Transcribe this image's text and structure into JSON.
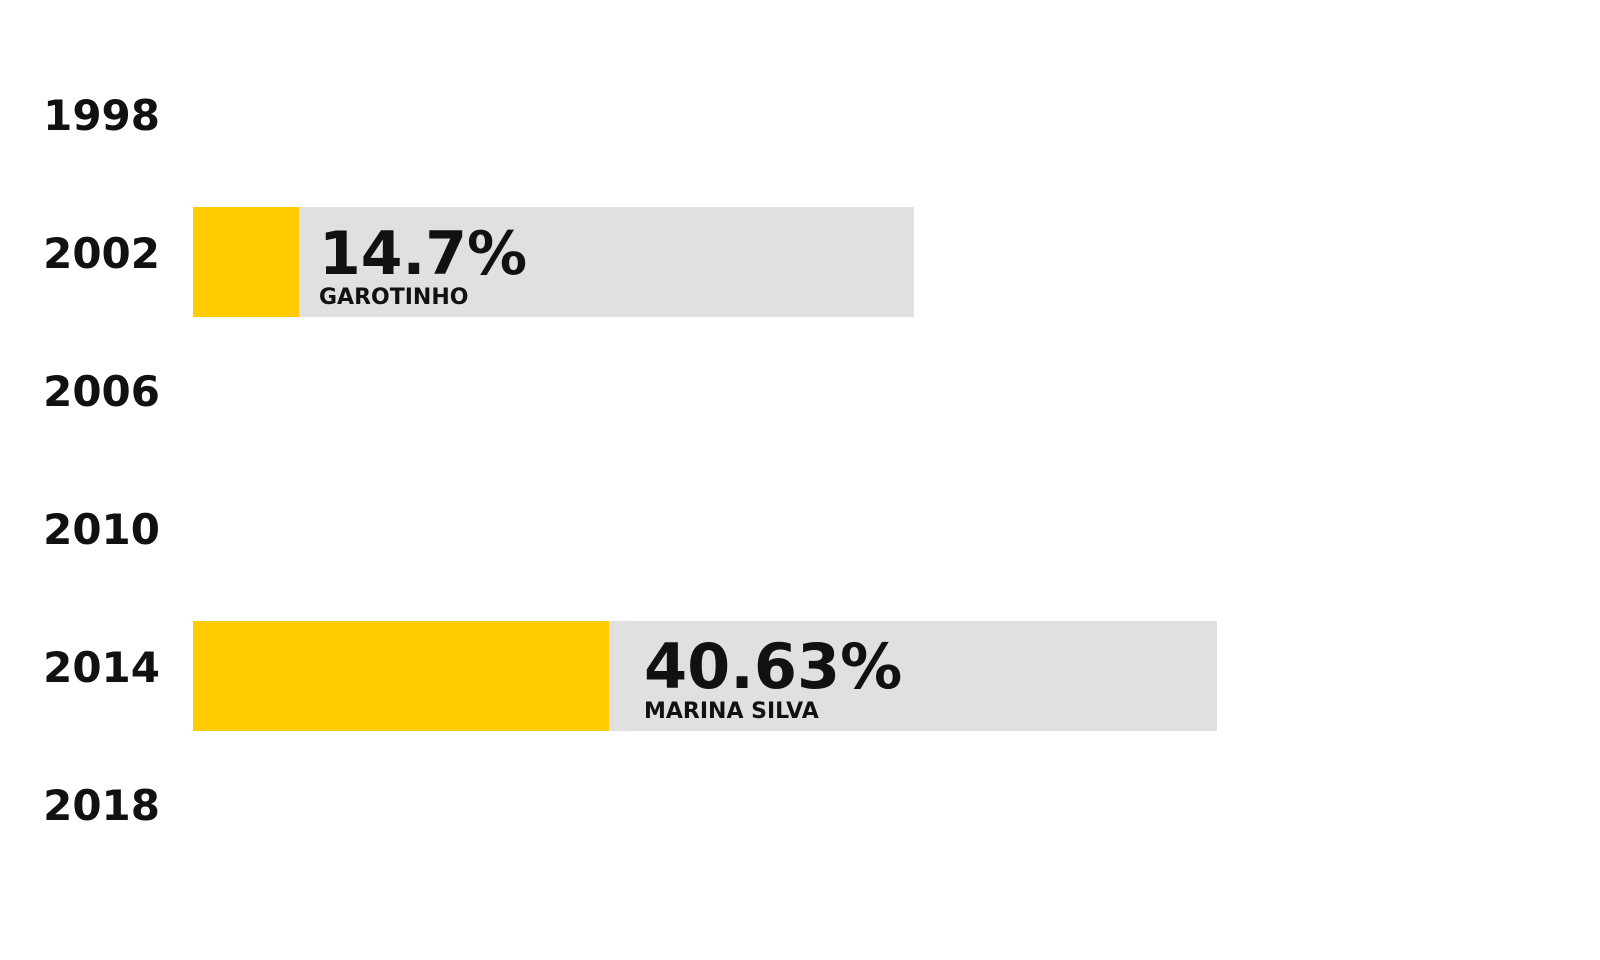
{
  "chart_data": {
    "type": "bar",
    "orientation": "horizontal",
    "categories": [
      "1998",
      "2002",
      "2006",
      "2010",
      "2014",
      "2018"
    ],
    "bars": [
      {
        "category": "2002",
        "value": 14.7,
        "value_label": "14.7%",
        "candidate": "GAROTINHO",
        "background_value": 100
      },
      {
        "category": "2014",
        "value": 40.63,
        "value_label": "40.63%",
        "candidate": "MARINA SILVA",
        "background_value": 100
      }
    ],
    "colors": {
      "bar": "#ffcc00",
      "background": "#e0e0e0",
      "text": "#111111"
    }
  }
}
